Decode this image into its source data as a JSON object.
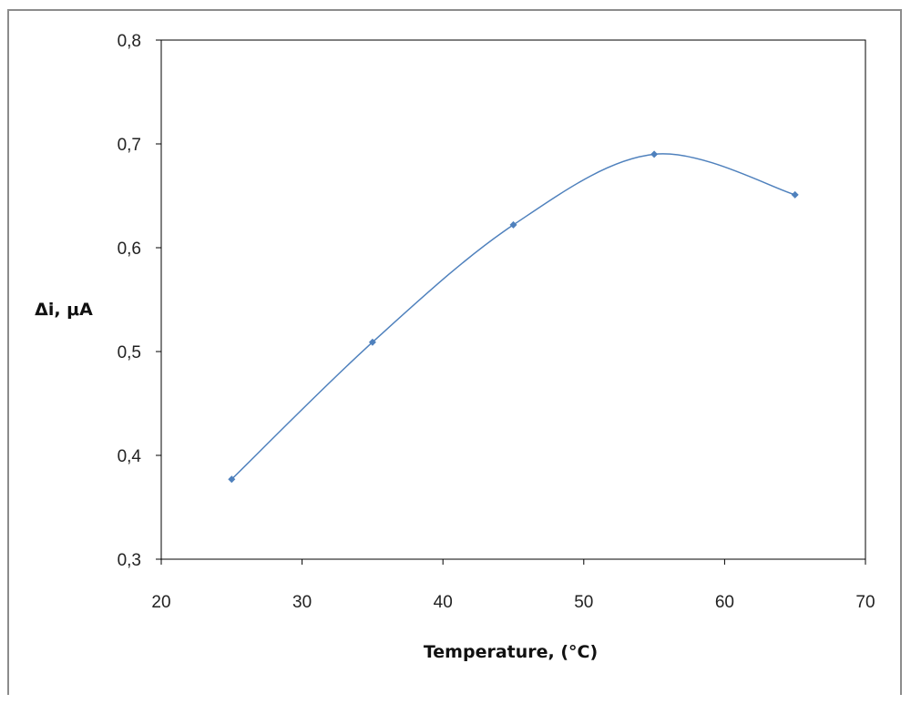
{
  "chart_data": {
    "type": "scatter",
    "title": "",
    "xlabel": "Temperature, (°C)",
    "ylabel": "Δi, μA",
    "xlim": [
      20,
      70
    ],
    "ylim": [
      0.3,
      0.8
    ],
    "x_ticks": [
      20,
      30,
      40,
      50,
      60,
      70
    ],
    "y_ticks": [
      0.3,
      0.4,
      0.5,
      0.6,
      0.7,
      0.8
    ],
    "decimal_separator": ",",
    "grid": false,
    "legend": "none",
    "line_style": "smoothed",
    "series": [
      {
        "color": "#4f81bd",
        "marker": "diamond",
        "x": [
          25,
          35,
          45,
          55,
          65
        ],
        "y": [
          0.377,
          0.509,
          0.622,
          0.69,
          0.651
        ]
      }
    ]
  }
}
